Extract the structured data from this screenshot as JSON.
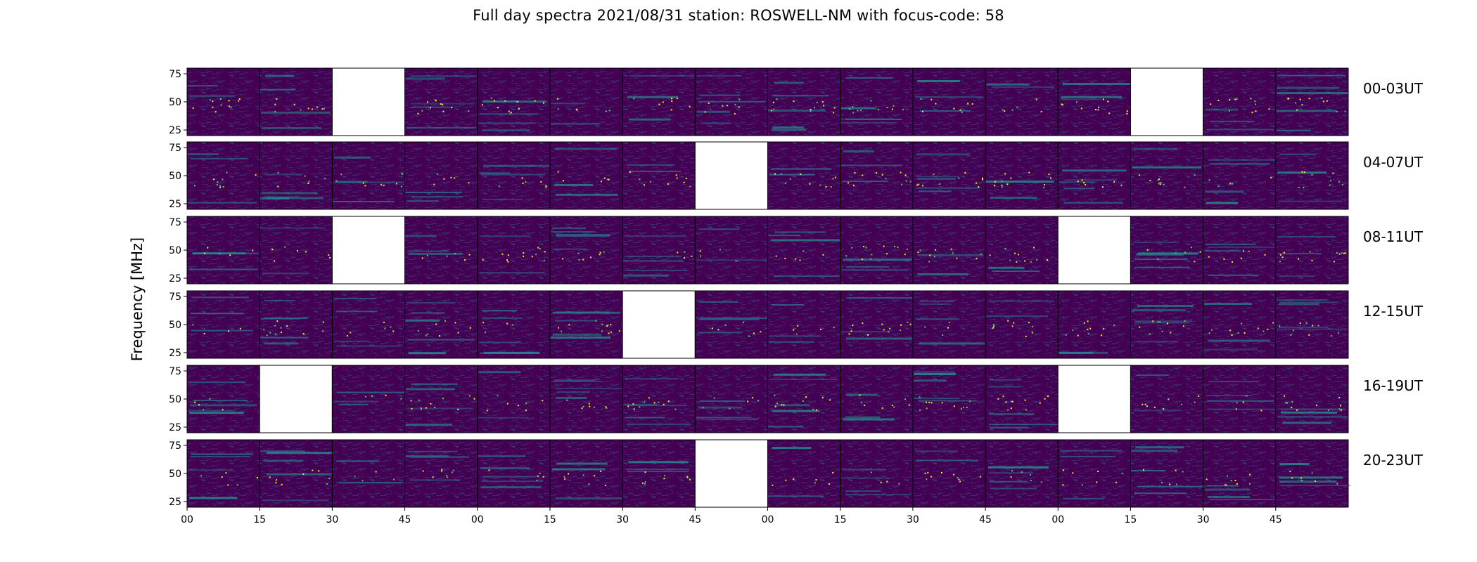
{
  "chart_data": {
    "type": "heatmap",
    "title": "Full day spectra 2021/08/31 station: ROSWELL-NM with focus-code: 58",
    "ylabel": "Frequency [MHz]",
    "xlabel": "",
    "colormap": "viridis",
    "colors": {
      "background": "#440154",
      "low": "#46085c",
      "mid": "#2c728e",
      "high": "#21918c",
      "peak": "#fde725",
      "missing": "#ffffff"
    },
    "ylim": [
      20,
      80
    ],
    "yticks": [
      25,
      50,
      75
    ],
    "x_tick_labels": [
      "00",
      "15",
      "30",
      "45",
      "00",
      "15",
      "30",
      "45",
      "00",
      "15",
      "30",
      "45",
      "00",
      "15",
      "30",
      "45"
    ],
    "panels_per_row": 16,
    "panel_minutes": 15,
    "rows": [
      {
        "label": "00-03UT",
        "missing": [
          2,
          13
        ]
      },
      {
        "label": "04-07UT",
        "missing": [
          7
        ]
      },
      {
        "label": "08-11UT",
        "missing": [
          2,
          12
        ]
      },
      {
        "label": "12-15UT",
        "missing": [
          6
        ]
      },
      {
        "label": "16-19UT",
        "missing": [
          1,
          12
        ]
      },
      {
        "label": "20-23UT",
        "missing": [
          7
        ]
      }
    ]
  }
}
